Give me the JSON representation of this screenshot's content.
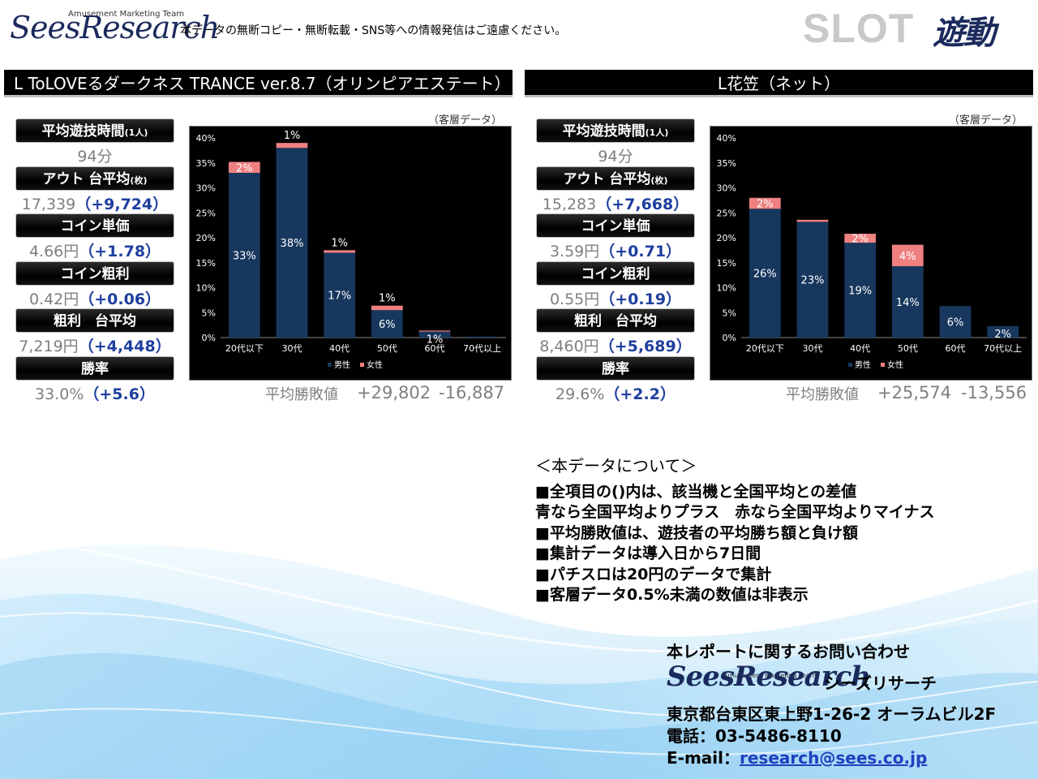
{
  "header": {
    "logo_main": "SeesResearch",
    "logo_sub": "Amusement Marketing Team",
    "notice": "本データの無断コピー・無断転載・SNS等への情報発信はご遠慮ください。",
    "slot": "SLOT",
    "yudo": "遊動"
  },
  "machines": [
    {
      "title": "L ToLOVEるダークネス TRANCE ver.8.7（オリンピアエステート）",
      "stats": [
        {
          "label": "平均遊技時間",
          "label_small": "(1人)",
          "value": "94分",
          "diff": ""
        },
        {
          "label": "アウト 台平均",
          "label_small": "(枚)",
          "value": "17,339",
          "diff": "（+9,724）"
        },
        {
          "label": "コイン単価",
          "label_small": "",
          "value": "4.66円",
          "diff": "（+1.78）"
        },
        {
          "label": "コイン粗利",
          "label_small": "",
          "value": "0.42円",
          "diff": "（+0.06）"
        },
        {
          "label": "粗利　台平均",
          "label_small": "",
          "value": "7,219円",
          "diff": "（+4,448）"
        },
        {
          "label": "勝率",
          "label_small": "",
          "value": "33.0%",
          "diff": "（+5.6）"
        }
      ],
      "segment_note": "（客層データ）",
      "avg_label": "平均勝敗値",
      "avg_win": "+29,802",
      "avg_loss": "-16,887"
    },
    {
      "title": "L花笠（ネット）",
      "stats": [
        {
          "label": "平均遊技時間",
          "label_small": "(1人)",
          "value": "94分",
          "diff": ""
        },
        {
          "label": "アウト 台平均",
          "label_small": "(枚)",
          "value": "15,283",
          "diff": "（+7,668）"
        },
        {
          "label": "コイン単価",
          "label_small": "",
          "value": "3.59円",
          "diff": "（+0.71）"
        },
        {
          "label": "コイン粗利",
          "label_small": "",
          "value": "0.55円",
          "diff": "（+0.19）"
        },
        {
          "label": "粗利　台平均",
          "label_small": "",
          "value": "8,460円",
          "diff": "（+5,689）"
        },
        {
          "label": "勝率",
          "label_small": "",
          "value": "29.6%",
          "diff": "（+2.2）"
        }
      ],
      "segment_note": "（客層データ）",
      "avg_label": "平均勝敗値",
      "avg_win": "+25,574",
      "avg_loss": "-13,556"
    }
  ],
  "chart_data": [
    {
      "type": "bar",
      "stacked": true,
      "categories": [
        "20代以下",
        "30代",
        "40代",
        "50代",
        "60代",
        "70代以上"
      ],
      "series": [
        {
          "name": "男性",
          "values": [
            33,
            38,
            17,
            5.5,
            1.2,
            0.2
          ],
          "labels": [
            "33%",
            "38%",
            "17%",
            "6%",
            "1%",
            ""
          ],
          "color": "#17375e"
        },
        {
          "name": "女性",
          "values": [
            2.2,
            1.0,
            0.5,
            0.9,
            0.2,
            0
          ],
          "labels": [
            "2%",
            "1%",
            "1%",
            "1%",
            "",
            ""
          ],
          "color": "#f08080"
        }
      ],
      "ylim": [
        0,
        40
      ],
      "yticks": [
        "0%",
        "5%",
        "10%",
        "15%",
        "20%",
        "25%",
        "30%",
        "35%",
        "40%"
      ],
      "legend_position": "bottom",
      "grid": false
    },
    {
      "type": "bar",
      "stacked": true,
      "categories": [
        "20代以下",
        "30代",
        "40代",
        "50代",
        "60代",
        "70代以上"
      ],
      "series": [
        {
          "name": "男性",
          "values": [
            25.8,
            23.2,
            19,
            14.3,
            6.3,
            2.3
          ],
          "labels": [
            "26%",
            "23%",
            "19%",
            "14%",
            "6%",
            "2%"
          ],
          "color": "#17375e"
        },
        {
          "name": "女性",
          "values": [
            2.2,
            0.4,
            1.8,
            4.3,
            0,
            0
          ],
          "labels": [
            "2%",
            "",
            "2%",
            "4%",
            "",
            ""
          ],
          "color": "#f08080"
        }
      ],
      "ylim": [
        0,
        40
      ],
      "yticks": [
        "0%",
        "5%",
        "10%",
        "15%",
        "20%",
        "25%",
        "30%",
        "35%",
        "40%"
      ],
      "legend_position": "bottom",
      "grid": false
    }
  ],
  "notes": {
    "heading": "＜本データについて＞",
    "lines": [
      "■全項目の()内は、該当機と全国平均との差値",
      "青なら全国平均よりプラス　赤なら全国平均よりマイナス",
      "■平均勝敗値は、遊技者の平均勝ち額と負け額",
      "■集計データは導入日から7日間",
      "■パチスロは20円のデータで集計",
      "■客層データ0.5%未満の数値は非表示"
    ]
  },
  "contact": {
    "heading": "本レポートに関するお問い合わせ",
    "company": "シーズリサーチ",
    "address": "東京都台東区東上野1-26-2 オーラムビル2F",
    "phone": "電話：03-5486-8110",
    "email_label": "E-mail：",
    "email": "research@sees.co.jp"
  },
  "colors": {
    "accent": "#1f3f9f",
    "male": "#17375e",
    "female": "#f08080"
  }
}
